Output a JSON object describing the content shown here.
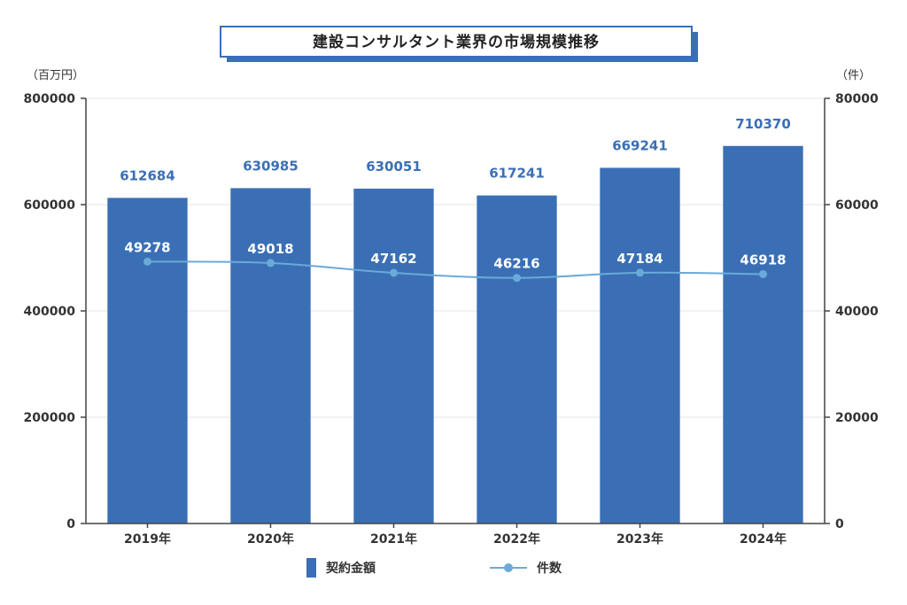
{
  "chart_data": {
    "type": "bar",
    "title": "建設コンサルタント業界の市場規模推移",
    "categories": [
      "2019年",
      "2020年",
      "2021年",
      "2022年",
      "2023年",
      "2024年"
    ],
    "series": [
      {
        "name": "契約金額",
        "type": "bar",
        "axis": "left",
        "values": [
          612684,
          630985,
          630051,
          617241,
          669241,
          710370
        ]
      },
      {
        "name": "件数",
        "type": "line",
        "axis": "right",
        "values": [
          49278,
          49018,
          47162,
          46216,
          47184,
          46918
        ]
      }
    ],
    "y_left": {
      "unit": "（百万円）",
      "range": [
        0,
        800000
      ],
      "ticks": [
        "0",
        "200000",
        "400000",
        "600000",
        "800000"
      ]
    },
    "y_right": {
      "unit": "（件）",
      "range": [
        0,
        80000
      ],
      "ticks": [
        "0",
        "20000",
        "40000",
        "60000",
        "80000"
      ]
    },
    "grid": true,
    "legend_position": "bottom-center",
    "colors": {
      "bar": "#3a6fb5",
      "line": "#6aaad8",
      "title_shadow": "#3a6fb5"
    }
  }
}
